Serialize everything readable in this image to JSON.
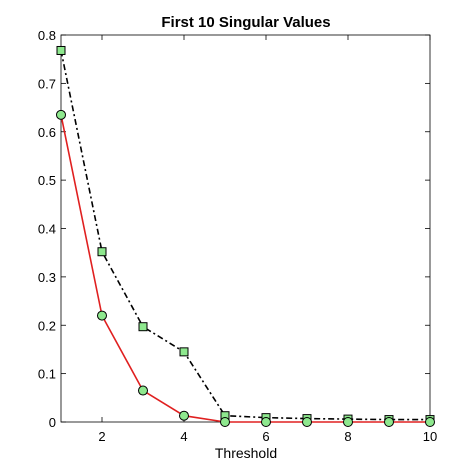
{
  "chart_data": {
    "type": "line",
    "title": "First 10 Singular Values",
    "xlabel": "Threshold",
    "ylabel": "",
    "xlim": [
      1,
      10
    ],
    "ylim": [
      0,
      0.8
    ],
    "xticks": [
      2,
      4,
      6,
      8,
      10
    ],
    "yticks": [
      0,
      0.1,
      0.2,
      0.3,
      0.4,
      0.5,
      0.6,
      0.7,
      0.8
    ],
    "grid": false,
    "x": [
      1,
      2,
      3,
      4,
      5,
      6,
      7,
      8,
      9,
      10
    ],
    "series": [
      {
        "values": [
          0.768,
          0.352,
          0.197,
          0.145,
          0.013,
          0.009,
          0.007,
          0.006,
          0.005,
          0.005
        ],
        "line_color": "#000000",
        "line_style": "dash-dot",
        "marker": "square",
        "marker_fill": "#8ee88e"
      },
      {
        "values": [
          0.635,
          0.22,
          0.065,
          0.013,
          0.0,
          0.0,
          0.0,
          0.0,
          0.0,
          0.0
        ],
        "line_color": "#e02020",
        "line_style": "solid",
        "marker": "circle",
        "marker_fill": "#8ee88e"
      }
    ]
  }
}
